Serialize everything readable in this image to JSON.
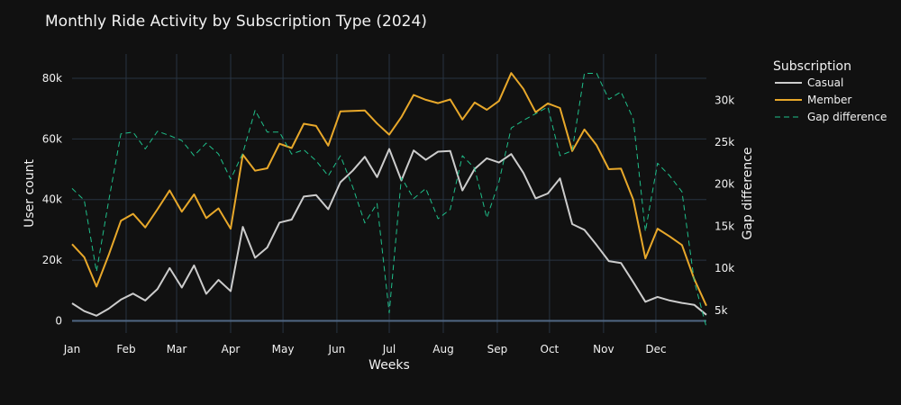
{
  "chart_data": {
    "type": "line",
    "title": "Monthly Ride Activity by Subscription Type (2024)",
    "xlabel": "Weeks",
    "ylabel": "User count",
    "y2label": "Gap difference",
    "x_tick_labels": [
      "Jan",
      "Feb",
      "Mar",
      "Apr",
      "May",
      "Jun",
      "Jul",
      "Aug",
      "Sep",
      "Oct",
      "Nov",
      "Dec"
    ],
    "x_tick_weeks": [
      0,
      4.43,
      8.57,
      13,
      17.29,
      21.71,
      26,
      30.43,
      34.86,
      39.14,
      43.57,
      47.86
    ],
    "ylim": [
      -4000,
      88000
    ],
    "y_ticks": [
      0,
      20000,
      40000,
      60000,
      80000
    ],
    "y_tick_labels": [
      "0",
      "20k",
      "40k",
      "60k",
      "80k"
    ],
    "y2lim": [
      2300,
      35500
    ],
    "y2_ticks": [
      5000,
      10000,
      15000,
      20000,
      25000,
      30000
    ],
    "y2_tick_labels": [
      "5k",
      "10k",
      "15k",
      "20k",
      "25k",
      "30k"
    ],
    "grid": true,
    "legend": {
      "title": "Subscription",
      "placement": "right"
    },
    "series": [
      {
        "name": "Casual",
        "axis": "y",
        "color": "#cccccc",
        "dash": "solid",
        "values": [
          5800,
          3200,
          1700,
          4000,
          7000,
          9000,
          6700,
          10500,
          17400,
          11000,
          18300,
          8900,
          13500,
          9800,
          31000,
          20800,
          24200,
          32400,
          33400,
          41000,
          41500,
          36800,
          45700,
          49500,
          54100,
          47400,
          56700,
          46300,
          56200,
          53100,
          55800,
          56000,
          43000,
          50100,
          53600,
          52200,
          55000,
          48800,
          40400,
          42000,
          47000,
          31900,
          30000,
          25000,
          19700,
          19100,
          12800,
          6300,
          7900,
          6700,
          5900,
          5300,
          2000
        ]
      },
      {
        "name": "Member",
        "axis": "y",
        "color": "#e8a82a",
        "dash": "solid",
        "values": [
          25300,
          21000,
          11300,
          21700,
          33000,
          35300,
          30800,
          36800,
          43000,
          36000,
          41700,
          33900,
          37100,
          30400,
          54800,
          49500,
          50300,
          58400,
          57000,
          65000,
          64300,
          57800,
          69100,
          69200,
          69400,
          65100,
          61400,
          67200,
          74500,
          72900,
          71800,
          73000,
          66400,
          72000,
          69600,
          72500,
          81700,
          76500,
          68800,
          71700,
          70200,
          56000,
          63100,
          57900,
          50000,
          50200,
          40000,
          20600,
          30400,
          27800,
          25000,
          13800,
          5000
        ]
      },
      {
        "name": "Gap difference",
        "axis": "y2",
        "color": "#1fbf8a",
        "dash": "dashed",
        "values": [
          19500,
          18100,
          9600,
          18000,
          26000,
          26200,
          24200,
          26300,
          25800,
          25200,
          23400,
          24900,
          23600,
          20600,
          23700,
          28800,
          26200,
          26200,
          23600,
          24100,
          22800,
          21000,
          23400,
          19700,
          15400,
          17700,
          4700,
          20800,
          18300,
          19500,
          15900,
          17000,
          23400,
          21900,
          16000,
          20300,
          26700,
          27600,
          28400,
          29200,
          23400,
          24000,
          33200,
          33200,
          30100,
          31000,
          27800,
          14400,
          22500,
          21000,
          19100,
          8500,
          3000
        ]
      }
    ]
  }
}
